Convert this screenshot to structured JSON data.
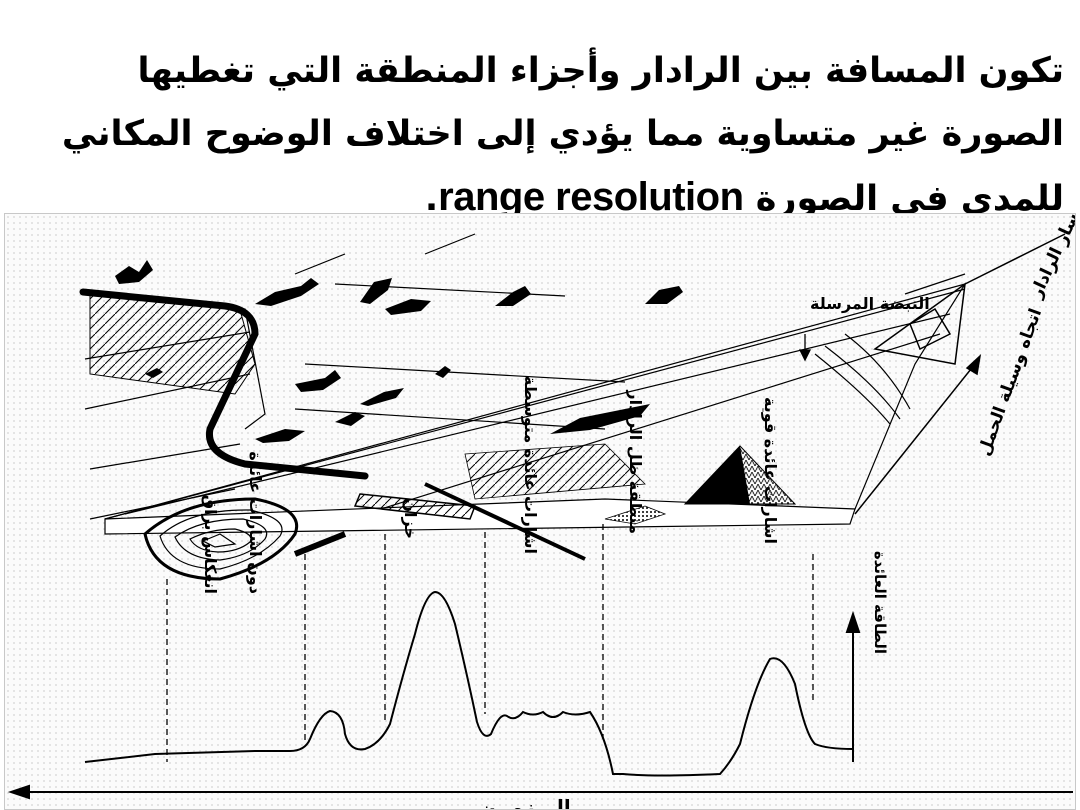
{
  "heading": {
    "text": "تكون المسافة  بين الرادار وأجزاء المنطقة التي تغطيها الصورة غير متساوية مما يؤدي إلى اختلاف الوضوح المكاني للمدى في الصورة",
    "term": "range resolution",
    "stop": "."
  },
  "figure": {
    "labels": {
      "radar_path": "مسار الرادار",
      "transmitted_pulse": "النبضة المرسلة",
      "illumination_direction": "اتجاه وسيلة الحمل",
      "strong_returns": "اشارات عائدة قوية",
      "radar_shadow": "منطقة ظل الرادار",
      "medium_returns": "اشارات عائدة متوسطة",
      "building": "خزان",
      "specular_reflection": "انعكاس براق",
      "no_returns": "دون اشارات عائدة",
      "returned_energy": "الطاقة العائدة",
      "time": "الـــزمــن"
    }
  }
}
